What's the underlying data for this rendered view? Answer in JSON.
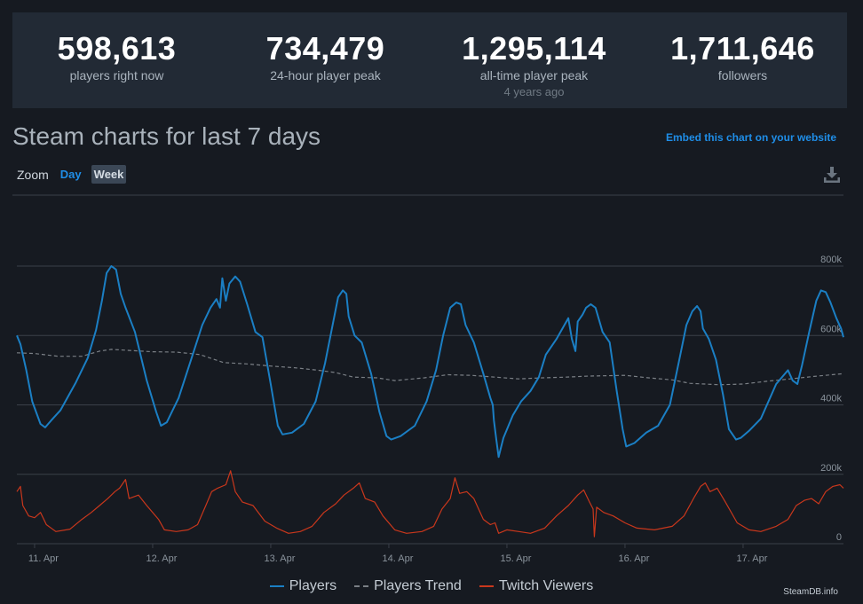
{
  "stats": [
    {
      "value": "598,613",
      "label": "players right now",
      "sub": ""
    },
    {
      "value": "734,479",
      "label": "24-hour player peak",
      "sub": ""
    },
    {
      "value": "1,295,114",
      "label": "all-time player peak",
      "sub": "4 years ago"
    },
    {
      "value": "1,711,646",
      "label": "followers",
      "sub": ""
    }
  ],
  "header": {
    "title": "Steam charts for last 7 days",
    "embed_link": "Embed this chart on your website",
    "zoom_label": "Zoom",
    "zoom_day": "Day",
    "zoom_week": "Week"
  },
  "colors": {
    "players": "#1b7fc4",
    "trend": "#7a7f85",
    "twitch": "#c9371c",
    "grid": "#3a4049"
  },
  "icons": {
    "download": "download-icon"
  },
  "credit": "SteamDB.info",
  "chart_data": {
    "type": "line",
    "x_unit": "days",
    "xlim": [
      10.85,
      17.85
    ],
    "ylim": [
      0,
      800000
    ],
    "x_ticks": [
      11,
      12,
      13,
      14,
      15,
      16,
      17
    ],
    "x_tick_labels": [
      "11. Apr",
      "12. Apr",
      "13. Apr",
      "14. Apr",
      "15. Apr",
      "16. Apr",
      "17. Apr"
    ],
    "y_ticks": [
      0,
      200000,
      400000,
      600000,
      800000
    ],
    "y_tick_labels": [
      "0",
      "200k",
      "400k",
      "600k",
      "800k"
    ],
    "legend_position": "bottom-center",
    "series": [
      {
        "name": "Players",
        "style": "solid",
        "points": [
          [
            10.85,
            600000
          ],
          [
            10.88,
            575000
          ],
          [
            10.93,
            500000
          ],
          [
            10.98,
            410000
          ],
          [
            11.05,
            345000
          ],
          [
            11.09,
            335000
          ],
          [
            11.14,
            355000
          ],
          [
            11.22,
            385000
          ],
          [
            11.35,
            465000
          ],
          [
            11.45,
            535000
          ],
          [
            11.52,
            615000
          ],
          [
            11.57,
            700000
          ],
          [
            11.61,
            780000
          ],
          [
            11.65,
            800000
          ],
          [
            11.69,
            790000
          ],
          [
            11.73,
            720000
          ],
          [
            11.77,
            680000
          ],
          [
            11.85,
            610000
          ],
          [
            11.95,
            470000
          ],
          [
            12.03,
            380000
          ],
          [
            12.07,
            340000
          ],
          [
            12.12,
            350000
          ],
          [
            12.22,
            420000
          ],
          [
            12.33,
            535000
          ],
          [
            12.42,
            630000
          ],
          [
            12.49,
            680000
          ],
          [
            12.54,
            705000
          ],
          [
            12.57,
            680000
          ],
          [
            12.59,
            765000
          ],
          [
            12.62,
            700000
          ],
          [
            12.65,
            750000
          ],
          [
            12.7,
            770000
          ],
          [
            12.74,
            755000
          ],
          [
            12.8,
            690000
          ],
          [
            12.87,
            610000
          ],
          [
            12.93,
            595000
          ],
          [
            13.0,
            460000
          ],
          [
            13.06,
            340000
          ],
          [
            13.1,
            315000
          ],
          [
            13.18,
            320000
          ],
          [
            13.28,
            345000
          ],
          [
            13.38,
            410000
          ],
          [
            13.46,
            520000
          ],
          [
            13.53,
            640000
          ],
          [
            13.57,
            710000
          ],
          [
            13.61,
            730000
          ],
          [
            13.64,
            720000
          ],
          [
            13.66,
            655000
          ],
          [
            13.71,
            600000
          ],
          [
            13.77,
            580000
          ],
          [
            13.85,
            490000
          ],
          [
            13.92,
            380000
          ],
          [
            13.98,
            310000
          ],
          [
            14.02,
            300000
          ],
          [
            14.1,
            310000
          ],
          [
            14.22,
            340000
          ],
          [
            14.32,
            410000
          ],
          [
            14.4,
            500000
          ],
          [
            14.46,
            600000
          ],
          [
            14.52,
            680000
          ],
          [
            14.57,
            695000
          ],
          [
            14.61,
            690000
          ],
          [
            14.65,
            630000
          ],
          [
            14.72,
            580000
          ],
          [
            14.8,
            490000
          ],
          [
            14.86,
            420000
          ],
          [
            14.88,
            400000
          ],
          [
            14.89,
            355000
          ],
          [
            14.91,
            300000
          ],
          [
            14.93,
            250000
          ],
          [
            14.97,
            305000
          ],
          [
            15.05,
            370000
          ],
          [
            15.12,
            410000
          ],
          [
            15.2,
            440000
          ],
          [
            15.27,
            480000
          ],
          [
            15.33,
            545000
          ],
          [
            15.42,
            590000
          ],
          [
            15.52,
            650000
          ],
          [
            15.55,
            590000
          ],
          [
            15.58,
            555000
          ],
          [
            15.6,
            640000
          ],
          [
            15.64,
            660000
          ],
          [
            15.67,
            680000
          ],
          [
            15.71,
            690000
          ],
          [
            15.75,
            680000
          ],
          [
            15.81,
            610000
          ],
          [
            15.87,
            580000
          ],
          [
            15.93,
            440000
          ],
          [
            15.98,
            330000
          ],
          [
            16.01,
            280000
          ],
          [
            16.08,
            290000
          ],
          [
            16.18,
            320000
          ],
          [
            16.28,
            340000
          ],
          [
            16.38,
            400000
          ],
          [
            16.46,
            530000
          ],
          [
            16.52,
            630000
          ],
          [
            16.57,
            670000
          ],
          [
            16.61,
            685000
          ],
          [
            16.64,
            670000
          ],
          [
            16.66,
            620000
          ],
          [
            16.71,
            590000
          ],
          [
            16.77,
            530000
          ],
          [
            16.83,
            430000
          ],
          [
            16.88,
            330000
          ],
          [
            16.94,
            300000
          ],
          [
            16.98,
            305000
          ],
          [
            17.05,
            325000
          ],
          [
            17.15,
            360000
          ],
          [
            17.28,
            460000
          ],
          [
            17.38,
            500000
          ],
          [
            17.42,
            470000
          ],
          [
            17.46,
            460000
          ],
          [
            17.5,
            515000
          ],
          [
            17.56,
            610000
          ],
          [
            17.62,
            700000
          ],
          [
            17.66,
            730000
          ],
          [
            17.7,
            725000
          ],
          [
            17.74,
            695000
          ],
          [
            17.79,
            650000
          ],
          [
            17.83,
            620000
          ],
          [
            17.85,
            595000
          ]
        ]
      },
      {
        "name": "Players Trend",
        "style": "dashed",
        "points": [
          [
            10.85,
            550000
          ],
          [
            11.0,
            548000
          ],
          [
            11.2,
            540000
          ],
          [
            11.4,
            540000
          ],
          [
            11.55,
            555000
          ],
          [
            11.65,
            560000
          ],
          [
            11.8,
            557000
          ],
          [
            12.0,
            553000
          ],
          [
            12.2,
            552000
          ],
          [
            12.4,
            545000
          ],
          [
            12.6,
            522000
          ],
          [
            12.8,
            518000
          ],
          [
            13.0,
            512000
          ],
          [
            13.2,
            507000
          ],
          [
            13.4,
            500000
          ],
          [
            13.55,
            493000
          ],
          [
            13.7,
            480000
          ],
          [
            13.9,
            478000
          ],
          [
            14.05,
            470000
          ],
          [
            14.3,
            478000
          ],
          [
            14.5,
            487000
          ],
          [
            14.7,
            485000
          ],
          [
            14.9,
            480000
          ],
          [
            15.1,
            475000
          ],
          [
            15.3,
            478000
          ],
          [
            15.5,
            480000
          ],
          [
            15.7,
            483000
          ],
          [
            16.0,
            485000
          ],
          [
            16.2,
            478000
          ],
          [
            16.4,
            472000
          ],
          [
            16.55,
            462000
          ],
          [
            16.8,
            458000
          ],
          [
            17.0,
            460000
          ],
          [
            17.2,
            468000
          ],
          [
            17.4,
            475000
          ],
          [
            17.6,
            482000
          ],
          [
            17.85,
            490000
          ]
        ]
      },
      {
        "name": "Twitch Viewers",
        "style": "solid",
        "points": [
          [
            10.85,
            150000
          ],
          [
            10.88,
            165000
          ],
          [
            10.9,
            110000
          ],
          [
            10.95,
            80000
          ],
          [
            11.0,
            75000
          ],
          [
            11.05,
            90000
          ],
          [
            11.1,
            55000
          ],
          [
            11.18,
            35000
          ],
          [
            11.3,
            42000
          ],
          [
            11.4,
            70000
          ],
          [
            11.48,
            90000
          ],
          [
            11.55,
            110000
          ],
          [
            11.62,
            130000
          ],
          [
            11.68,
            150000
          ],
          [
            11.72,
            160000
          ],
          [
            11.77,
            185000
          ],
          [
            11.8,
            130000
          ],
          [
            11.88,
            140000
          ],
          [
            11.95,
            110000
          ],
          [
            12.05,
            70000
          ],
          [
            12.1,
            40000
          ],
          [
            12.2,
            35000
          ],
          [
            12.3,
            40000
          ],
          [
            12.38,
            55000
          ],
          [
            12.45,
            110000
          ],
          [
            12.5,
            150000
          ],
          [
            12.55,
            160000
          ],
          [
            12.62,
            170000
          ],
          [
            12.66,
            210000
          ],
          [
            12.7,
            150000
          ],
          [
            12.76,
            120000
          ],
          [
            12.85,
            110000
          ],
          [
            12.95,
            65000
          ],
          [
            13.05,
            45000
          ],
          [
            13.15,
            30000
          ],
          [
            13.25,
            35000
          ],
          [
            13.35,
            50000
          ],
          [
            13.45,
            90000
          ],
          [
            13.55,
            115000
          ],
          [
            13.62,
            140000
          ],
          [
            13.7,
            160000
          ],
          [
            13.75,
            175000
          ],
          [
            13.8,
            130000
          ],
          [
            13.88,
            120000
          ],
          [
            13.95,
            80000
          ],
          [
            14.05,
            40000
          ],
          [
            14.15,
            30000
          ],
          [
            14.28,
            35000
          ],
          [
            14.38,
            50000
          ],
          [
            14.45,
            100000
          ],
          [
            14.52,
            130000
          ],
          [
            14.56,
            190000
          ],
          [
            14.6,
            145000
          ],
          [
            14.66,
            150000
          ],
          [
            14.72,
            130000
          ],
          [
            14.8,
            70000
          ],
          [
            14.86,
            55000
          ],
          [
            14.9,
            60000
          ],
          [
            14.93,
            30000
          ],
          [
            15.0,
            40000
          ],
          [
            15.1,
            35000
          ],
          [
            15.2,
            30000
          ],
          [
            15.32,
            45000
          ],
          [
            15.42,
            80000
          ],
          [
            15.52,
            110000
          ],
          [
            15.6,
            140000
          ],
          [
            15.65,
            155000
          ],
          [
            15.7,
            120000
          ],
          [
            15.73,
            100000
          ],
          [
            15.74,
            20000
          ],
          [
            15.76,
            105000
          ],
          [
            15.82,
            90000
          ],
          [
            15.9,
            80000
          ],
          [
            16.0,
            60000
          ],
          [
            16.1,
            45000
          ],
          [
            16.25,
            40000
          ],
          [
            16.4,
            50000
          ],
          [
            16.5,
            80000
          ],
          [
            16.58,
            130000
          ],
          [
            16.64,
            165000
          ],
          [
            16.68,
            175000
          ],
          [
            16.72,
            150000
          ],
          [
            16.78,
            160000
          ],
          [
            16.85,
            120000
          ],
          [
            16.95,
            60000
          ],
          [
            17.05,
            40000
          ],
          [
            17.15,
            35000
          ],
          [
            17.28,
            50000
          ],
          [
            17.38,
            70000
          ],
          [
            17.45,
            110000
          ],
          [
            17.52,
            125000
          ],
          [
            17.58,
            130000
          ],
          [
            17.64,
            115000
          ],
          [
            17.7,
            150000
          ],
          [
            17.76,
            165000
          ],
          [
            17.82,
            170000
          ],
          [
            17.85,
            160000
          ]
        ]
      }
    ]
  }
}
